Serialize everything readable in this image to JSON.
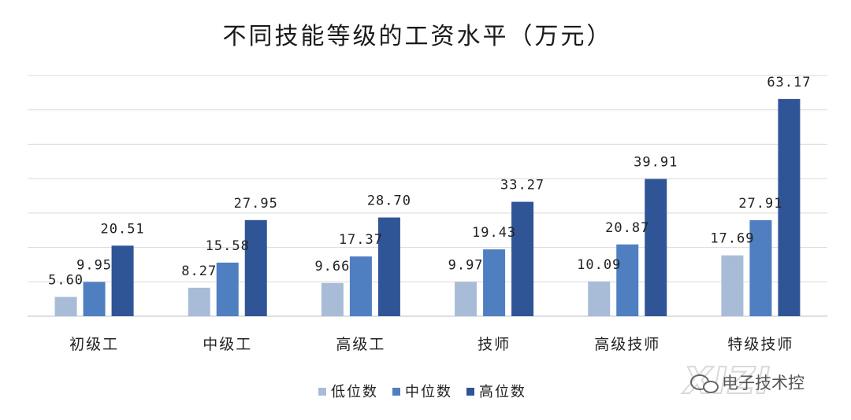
{
  "chart_data": {
    "type": "bar",
    "title": "不同技能等级的工资水平（万元）",
    "categories": [
      "初级工",
      "中级工",
      "高级工",
      "技师",
      "高级技师",
      "特级技师"
    ],
    "series": [
      {
        "name": "低位数",
        "color": "#a8bcd8",
        "values": [
          5.6,
          8.27,
          9.66,
          9.97,
          10.09,
          17.69
        ],
        "labels": [
          "5.60",
          "8.27",
          "9.66",
          "9.97",
          "10.09",
          "17.69"
        ]
      },
      {
        "name": "中位数",
        "color": "#4f7fc0",
        "values": [
          9.95,
          15.58,
          17.37,
          19.43,
          20.87,
          27.91
        ],
        "labels": [
          "9.95",
          "15.58",
          "17.37",
          "19.43",
          "20.87",
          "27.91"
        ]
      },
      {
        "name": "高位数",
        "color": "#2f5597",
        "values": [
          20.51,
          27.95,
          28.7,
          33.27,
          39.91,
          63.17
        ],
        "labels": [
          "20.51",
          "27.95",
          "28.70",
          "33.27",
          "39.91",
          "63.17"
        ]
      }
    ],
    "ylim": [
      0,
      70
    ],
    "grid": true,
    "legend": "bottom"
  },
  "watermark": {
    "logo": "XIZI",
    "text": "电子技术控",
    "icon": "wechat-icon"
  }
}
